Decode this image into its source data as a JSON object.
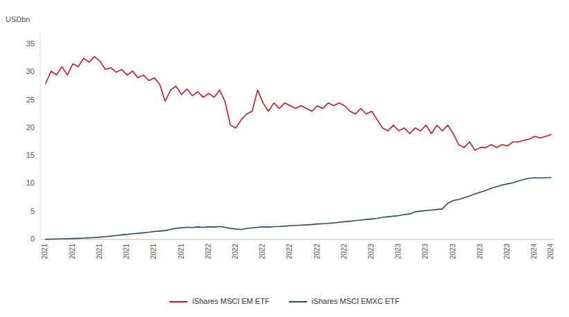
{
  "chart_data": {
    "type": "line",
    "ylabel": "USDbn",
    "categories": [
      "2021",
      null,
      null,
      null,
      null,
      "2021",
      null,
      null,
      null,
      null,
      "2021",
      null,
      null,
      null,
      null,
      "2021",
      null,
      null,
      null,
      null,
      "2021",
      null,
      null,
      null,
      null,
      "2021",
      null,
      null,
      null,
      null,
      "2022",
      null,
      null,
      null,
      null,
      "2022",
      null,
      null,
      null,
      null,
      "2022",
      null,
      null,
      null,
      null,
      "2022",
      null,
      null,
      null,
      null,
      "2022",
      null,
      null,
      null,
      null,
      "2022",
      null,
      null,
      null,
      null,
      "2023",
      null,
      null,
      null,
      null,
      "2023",
      null,
      null,
      null,
      null,
      "2023",
      null,
      null,
      null,
      null,
      "2023",
      null,
      null,
      null,
      null,
      "2023",
      null,
      null,
      null,
      null,
      "2023",
      null,
      null,
      null,
      null,
      "2024",
      null,
      null,
      "2024"
    ],
    "series": [
      {
        "name": "iShares MSCI EM ETF",
        "color": "#c0182d",
        "values": [
          28.0,
          30.2,
          29.5,
          31.0,
          29.5,
          31.5,
          31.0,
          32.5,
          31.8,
          32.8,
          32.0,
          30.5,
          30.8,
          30.0,
          30.5,
          29.5,
          30.2,
          29.0,
          29.5,
          28.5,
          29.0,
          27.8,
          24.8,
          26.8,
          27.5,
          26.0,
          27.0,
          25.8,
          26.5,
          25.5,
          26.2,
          25.5,
          26.8,
          24.8,
          20.5,
          20.0,
          21.5,
          22.5,
          23.0,
          26.8,
          24.5,
          23.0,
          24.5,
          23.5,
          24.5,
          24.0,
          23.5,
          24.0,
          23.5,
          23.0,
          24.0,
          23.5,
          24.5,
          24.0,
          24.5,
          24.0,
          23.0,
          22.5,
          23.5,
          22.5,
          23.0,
          21.5,
          20.0,
          19.5,
          20.5,
          19.5,
          20.0,
          19.0,
          20.0,
          19.5,
          20.5,
          19.0,
          20.5,
          19.5,
          20.5,
          19.0,
          17.0,
          16.5,
          17.5,
          16.0,
          16.5,
          16.5,
          17.0,
          16.5,
          17.0,
          16.8,
          17.5,
          17.5,
          17.8,
          18.0,
          18.5,
          18.2,
          18.5,
          18.8
        ]
      },
      {
        "name": "iShares MSCI EMXC ETF",
        "color": "#2e4a5a",
        "values": [
          0.05,
          0.07,
          0.09,
          0.12,
          0.14,
          0.17,
          0.2,
          0.24,
          0.3,
          0.35,
          0.42,
          0.5,
          0.6,
          0.72,
          0.82,
          0.92,
          1.02,
          1.1,
          1.2,
          1.3,
          1.42,
          1.5,
          1.6,
          1.8,
          2.0,
          2.1,
          2.2,
          2.15,
          2.25,
          2.18,
          2.28,
          2.22,
          2.32,
          2.18,
          2.0,
          1.88,
          1.8,
          1.98,
          2.08,
          2.18,
          2.28,
          2.22,
          2.3,
          2.32,
          2.38,
          2.48,
          2.52,
          2.58,
          2.62,
          2.68,
          2.78,
          2.82,
          2.88,
          2.98,
          3.08,
          3.18,
          3.28,
          3.38,
          3.48,
          3.58,
          3.68,
          3.78,
          3.98,
          4.08,
          4.18,
          4.28,
          4.48,
          4.58,
          4.98,
          5.08,
          5.18,
          5.28,
          5.38,
          5.48,
          6.48,
          6.98,
          7.18,
          7.48,
          7.78,
          8.18,
          8.48,
          8.78,
          9.18,
          9.48,
          9.78,
          9.98,
          10.18,
          10.48,
          10.78,
          10.98,
          11.08,
          11.02,
          11.08,
          11.12
        ]
      }
    ],
    "ylim": [
      0,
      37
    ],
    "yticks": [
      0,
      5,
      10,
      15,
      20,
      25,
      30,
      35
    ],
    "grid": false,
    "legend": "bottom"
  }
}
